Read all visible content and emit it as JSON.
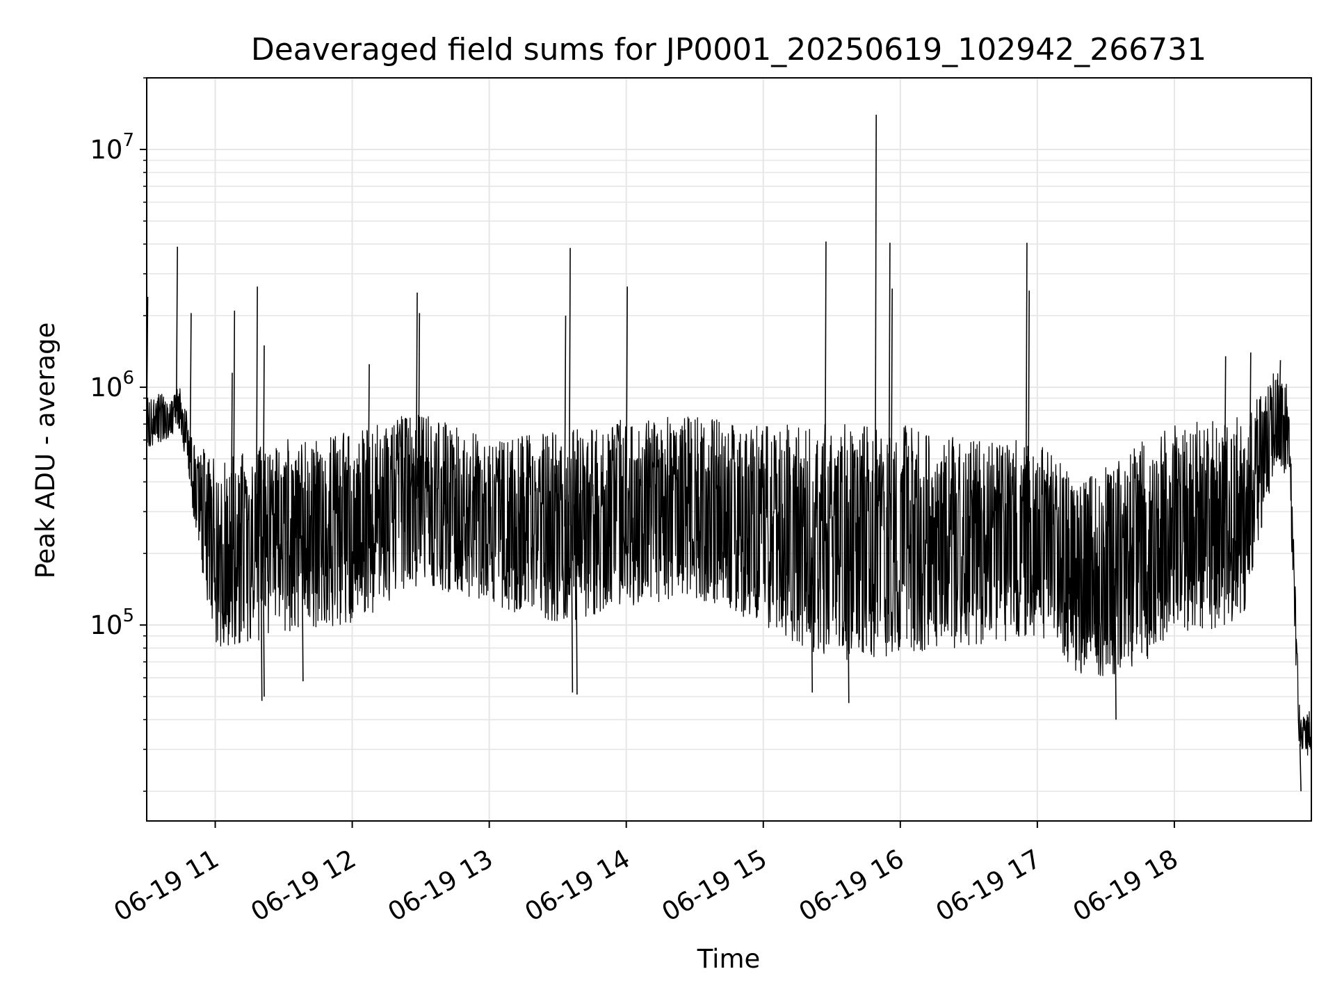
{
  "chart_data": {
    "type": "line",
    "title": "Deaveraged field sums for JP0001_20250619_102942_266731",
    "xlabel": "Time",
    "ylabel": "Peak ADU - average",
    "yscale": "log",
    "ylim": [
      15000,
      20000000
    ],
    "xlim": [
      "06-19 10:30",
      "06-19 19:00"
    ],
    "grid": true,
    "line_color": "#000000",
    "grid_color": "#e6e6e6",
    "x_ticks": [
      {
        "t": "06-19 11:00",
        "label": "06-19 11"
      },
      {
        "t": "06-19 12:00",
        "label": "06-19 12"
      },
      {
        "t": "06-19 13:00",
        "label": "06-19 13"
      },
      {
        "t": "06-19 14:00",
        "label": "06-19 14"
      },
      {
        "t": "06-19 15:00",
        "label": "06-19 15"
      },
      {
        "t": "06-19 16:00",
        "label": "06-19 16"
      },
      {
        "t": "06-19 17:00",
        "label": "06-19 17"
      },
      {
        "t": "06-19 18:00",
        "label": "06-19 18"
      }
    ],
    "y_ticks": [
      {
        "value": 100000,
        "base": "10",
        "exp": "5"
      },
      {
        "value": 1000000,
        "base": "10",
        "exp": "6"
      },
      {
        "value": 10000000,
        "base": "10",
        "exp": "7"
      }
    ],
    "envelope": [
      {
        "t": "06-19 10:30",
        "low": 550000,
        "high": 900000
      },
      {
        "t": "06-19 10:45",
        "low": 650000,
        "high": 1000000
      },
      {
        "t": "06-19 10:50",
        "low": 300000,
        "high": 600000
      },
      {
        "t": "06-19 11:00",
        "low": 80000,
        "high": 500000
      },
      {
        "t": "06-19 11:30",
        "low": 90000,
        "high": 600000
      },
      {
        "t": "06-19 12:00",
        "low": 100000,
        "high": 650000
      },
      {
        "t": "06-19 12:30",
        "low": 150000,
        "high": 800000
      },
      {
        "t": "06-19 13:00",
        "low": 120000,
        "high": 600000
      },
      {
        "t": "06-19 13:30",
        "low": 100000,
        "high": 650000
      },
      {
        "t": "06-19 14:00",
        "low": 120000,
        "high": 750000
      },
      {
        "t": "06-19 14:30",
        "low": 130000,
        "high": 750000
      },
      {
        "t": "06-19 15:00",
        "low": 100000,
        "high": 700000
      },
      {
        "t": "06-19 15:30",
        "low": 70000,
        "high": 700000
      },
      {
        "t": "06-19 16:00",
        "low": 75000,
        "high": 700000
      },
      {
        "t": "06-19 16:30",
        "low": 80000,
        "high": 600000
      },
      {
        "t": "06-19 17:00",
        "low": 90000,
        "high": 600000
      },
      {
        "t": "06-19 17:20",
        "low": 60000,
        "high": 400000
      },
      {
        "t": "06-19 17:40",
        "low": 60000,
        "high": 550000
      },
      {
        "t": "06-19 18:00",
        "low": 90000,
        "high": 700000
      },
      {
        "t": "06-19 18:30",
        "low": 100000,
        "high": 750000
      },
      {
        "t": "06-19 18:45",
        "low": 500000,
        "high": 1200000
      },
      {
        "t": "06-19 18:50",
        "low": 400000,
        "high": 1000000
      },
      {
        "t": "06-19 18:55",
        "low": 25000,
        "high": 40000
      },
      {
        "t": "06-19 19:00",
        "low": 30000,
        "high": 45000
      }
    ],
    "spikes": [
      {
        "t": "06-19 10:30",
        "value": 2400000
      },
      {
        "t": "06-19 10:43",
        "value": 3900000
      },
      {
        "t": "06-19 10:49",
        "value": 2050000
      },
      {
        "t": "06-19 11:07",
        "value": 1150000
      },
      {
        "t": "06-19 11:08",
        "value": 2100000
      },
      {
        "t": "06-19 11:18",
        "value": 2650000
      },
      {
        "t": "06-19 11:21",
        "value": 1500000
      },
      {
        "t": "06-19 12:07",
        "value": 1250000
      },
      {
        "t": "06-19 12:28",
        "value": 2500000
      },
      {
        "t": "06-19 12:29",
        "value": 2050000
      },
      {
        "t": "06-19 13:33",
        "value": 2000000
      },
      {
        "t": "06-19 13:35",
        "value": 3850000
      },
      {
        "t": "06-19 14:00",
        "value": 2650000
      },
      {
        "t": "06-19 15:27",
        "value": 4100000
      },
      {
        "t": "06-19 15:49",
        "value": 14000000
      },
      {
        "t": "06-19 15:55",
        "value": 4050000
      },
      {
        "t": "06-19 15:56",
        "value": 2600000
      },
      {
        "t": "06-19 16:55",
        "value": 4050000
      },
      {
        "t": "06-19 16:56",
        "value": 2550000
      },
      {
        "t": "06-19 18:22",
        "value": 1350000
      },
      {
        "t": "06-19 18:33",
        "value": 1400000
      },
      {
        "t": "06-19 18:46",
        "value": 1300000
      },
      {
        "t": "06-19 11:20",
        "value": 48000
      },
      {
        "t": "06-19 11:21",
        "value": 50000
      },
      {
        "t": "06-19 11:38",
        "value": 58000
      },
      {
        "t": "06-19 13:36",
        "value": 52000
      },
      {
        "t": "06-19 13:38",
        "value": 51000
      },
      {
        "t": "06-19 15:21",
        "value": 52000
      },
      {
        "t": "06-19 15:37",
        "value": 47000
      },
      {
        "t": "06-19 17:34",
        "value": 40000
      },
      {
        "t": "06-19 18:55",
        "value": 20000
      }
    ]
  }
}
